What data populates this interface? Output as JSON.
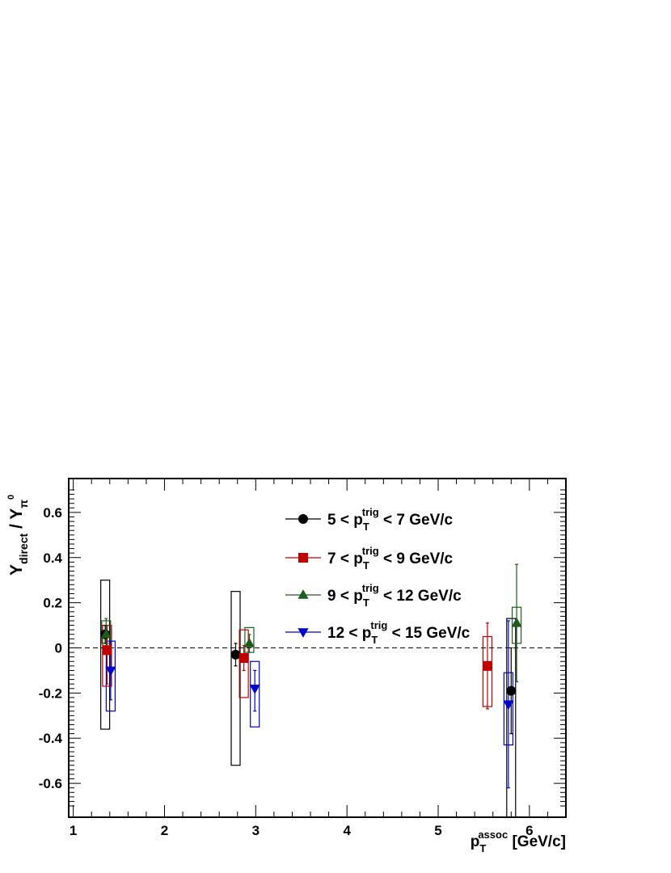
{
  "chart_data": {
    "type": "scatter",
    "title": "",
    "xlabel": {
      "main": "p",
      "sub": "T",
      "sup": "assoc",
      "unit": " [GeV/c]"
    },
    "ylabel": {
      "main": "Y",
      "sub": "direct",
      "sep": " / Y",
      "sub2": "π",
      "sup2": "0"
    },
    "xlim": [
      0.95,
      6.4
    ],
    "ylim": [
      -0.75,
      0.75
    ],
    "x_ticks": [
      1,
      2,
      3,
      4,
      5,
      6
    ],
    "x_tick_labels": [
      "1",
      "2",
      "3",
      "4",
      "5",
      "6"
    ],
    "y_ticks": [
      -0.6,
      -0.4,
      -0.2,
      0,
      0.2,
      0.4,
      0.6
    ],
    "y_tick_labels": [
      "-0.6",
      "-0.4",
      "-0.2",
      "0",
      "0.2",
      "0.4",
      "0.6"
    ],
    "reference_line": {
      "y": 0,
      "style": "dashed"
    },
    "grid": false,
    "legend_position": "top-center",
    "series": [
      {
        "legend": {
          "pre": "5 < p",
          "sub": "T",
          "sup": "trig",
          "post": " < 7 GeV/c"
        },
        "color": "#000000",
        "marker": "circle",
        "points": [
          {
            "x": 1.35,
            "y": 0.06,
            "stat_low": 0.02,
            "stat_high": 0.1,
            "sys_low": -0.36,
            "sys_high": 0.3
          },
          {
            "x": 2.78,
            "y": -0.03,
            "stat_low": -0.08,
            "stat_high": 0.02,
            "sys_low": -0.52,
            "sys_high": 0.25
          },
          {
            "x": 5.8,
            "y": -0.19,
            "stat_low": -0.38,
            "stat_high": 0.0,
            "sys_low": -0.75,
            "sys_high": 0.13
          }
        ]
      },
      {
        "legend": {
          "pre": "7 < p",
          "sub": "T",
          "sup": "trig",
          "post": " < 9 GeV/c"
        },
        "color": "#c00000",
        "marker": "square",
        "points": [
          {
            "x": 1.37,
            "y": -0.01,
            "stat_low": -0.16,
            "stat_high": 0.1,
            "sys_low": -0.17,
            "sys_high": 0.1
          },
          {
            "x": 2.87,
            "y": -0.045,
            "stat_low": -0.1,
            "stat_high": 0.01,
            "sys_low": -0.22,
            "sys_high": 0.08
          },
          {
            "x": 5.54,
            "y": -0.08,
            "stat_low": -0.27,
            "stat_high": 0.11,
            "sys_low": -0.26,
            "sys_high": 0.05
          }
        ]
      },
      {
        "legend": {
          "pre": "9 < p",
          "sub": "T",
          "sup": "trig",
          "post": " < 12 GeV/c"
        },
        "color": "#1e5c1e",
        "marker": "triangle-up",
        "points": [
          {
            "x": 1.36,
            "y": 0.06,
            "stat_low": 0.01,
            "stat_high": 0.13,
            "sys_low": 0.02,
            "sys_high": 0.12
          },
          {
            "x": 2.93,
            "y": 0.02,
            "stat_low": -0.02,
            "stat_high": 0.06,
            "sys_low": -0.02,
            "sys_high": 0.09
          },
          {
            "x": 5.86,
            "y": 0.11,
            "stat_low": -0.15,
            "stat_high": 0.37,
            "sys_low": 0.02,
            "sys_high": 0.18
          }
        ]
      },
      {
        "legend": {
          "pre": "12 < p",
          "sub": "T",
          "sup": "trig",
          "post": " < 15 GeV/c"
        },
        "color": "#0000cc",
        "marker": "triangle-down",
        "points": [
          {
            "x": 1.41,
            "y": -0.1,
            "stat_low": -0.23,
            "stat_high": 0.03,
            "sys_low": -0.28,
            "sys_high": 0.03
          },
          {
            "x": 2.99,
            "y": -0.18,
            "stat_low": -0.28,
            "stat_high": -0.1,
            "sys_low": -0.35,
            "sys_high": -0.06
          },
          {
            "x": 5.77,
            "y": -0.25,
            "stat_low": -0.62,
            "stat_high": 0.12,
            "sys_low": -0.43,
            "sys_high": -0.11
          }
        ]
      }
    ]
  }
}
